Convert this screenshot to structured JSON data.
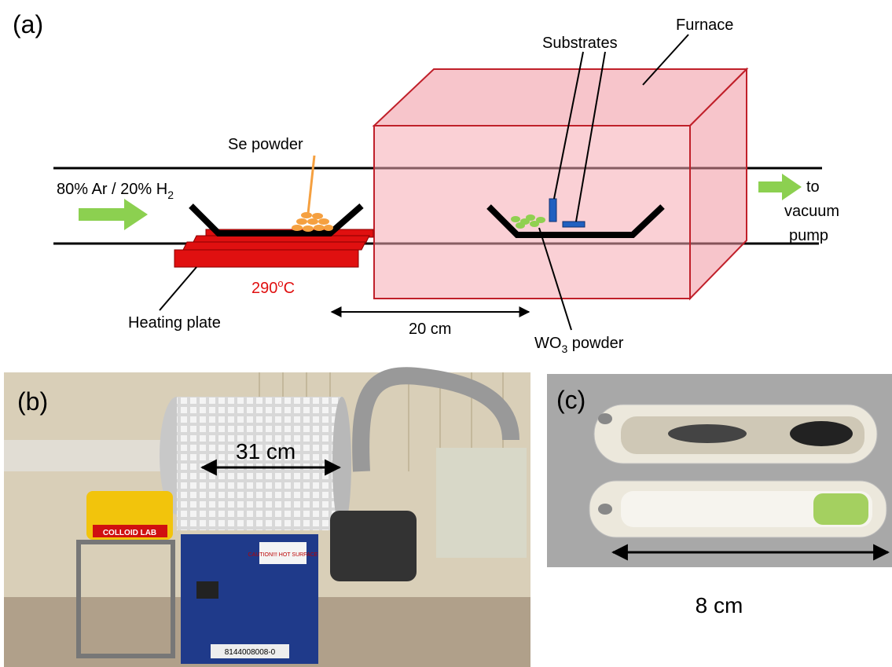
{
  "panel_a": {
    "label": "(a)",
    "furnace": "Furnace",
    "substrates": "Substrates",
    "se_powder": "Se powder",
    "gas": {
      "text": "80% Ar / 20% H",
      "sub": "2"
    },
    "outlet": [
      "to",
      "vacuum",
      "pump"
    ],
    "temperature": {
      "value": "290",
      "sup": "o",
      "unit": "C"
    },
    "heating_plate": "Heating plate",
    "distance": "20 cm",
    "wo3": {
      "pre": "WO",
      "sub": "3",
      "post": " powder"
    }
  },
  "panel_b": {
    "label": "(b)",
    "length": "31 cm",
    "hotplate_brand": "COLLOID LAB",
    "caution": "CAUTION!!! HOT SURFACE",
    "serial": "8144008008-0"
  },
  "panel_c": {
    "label": "(c)",
    "length": "8 cm"
  }
}
